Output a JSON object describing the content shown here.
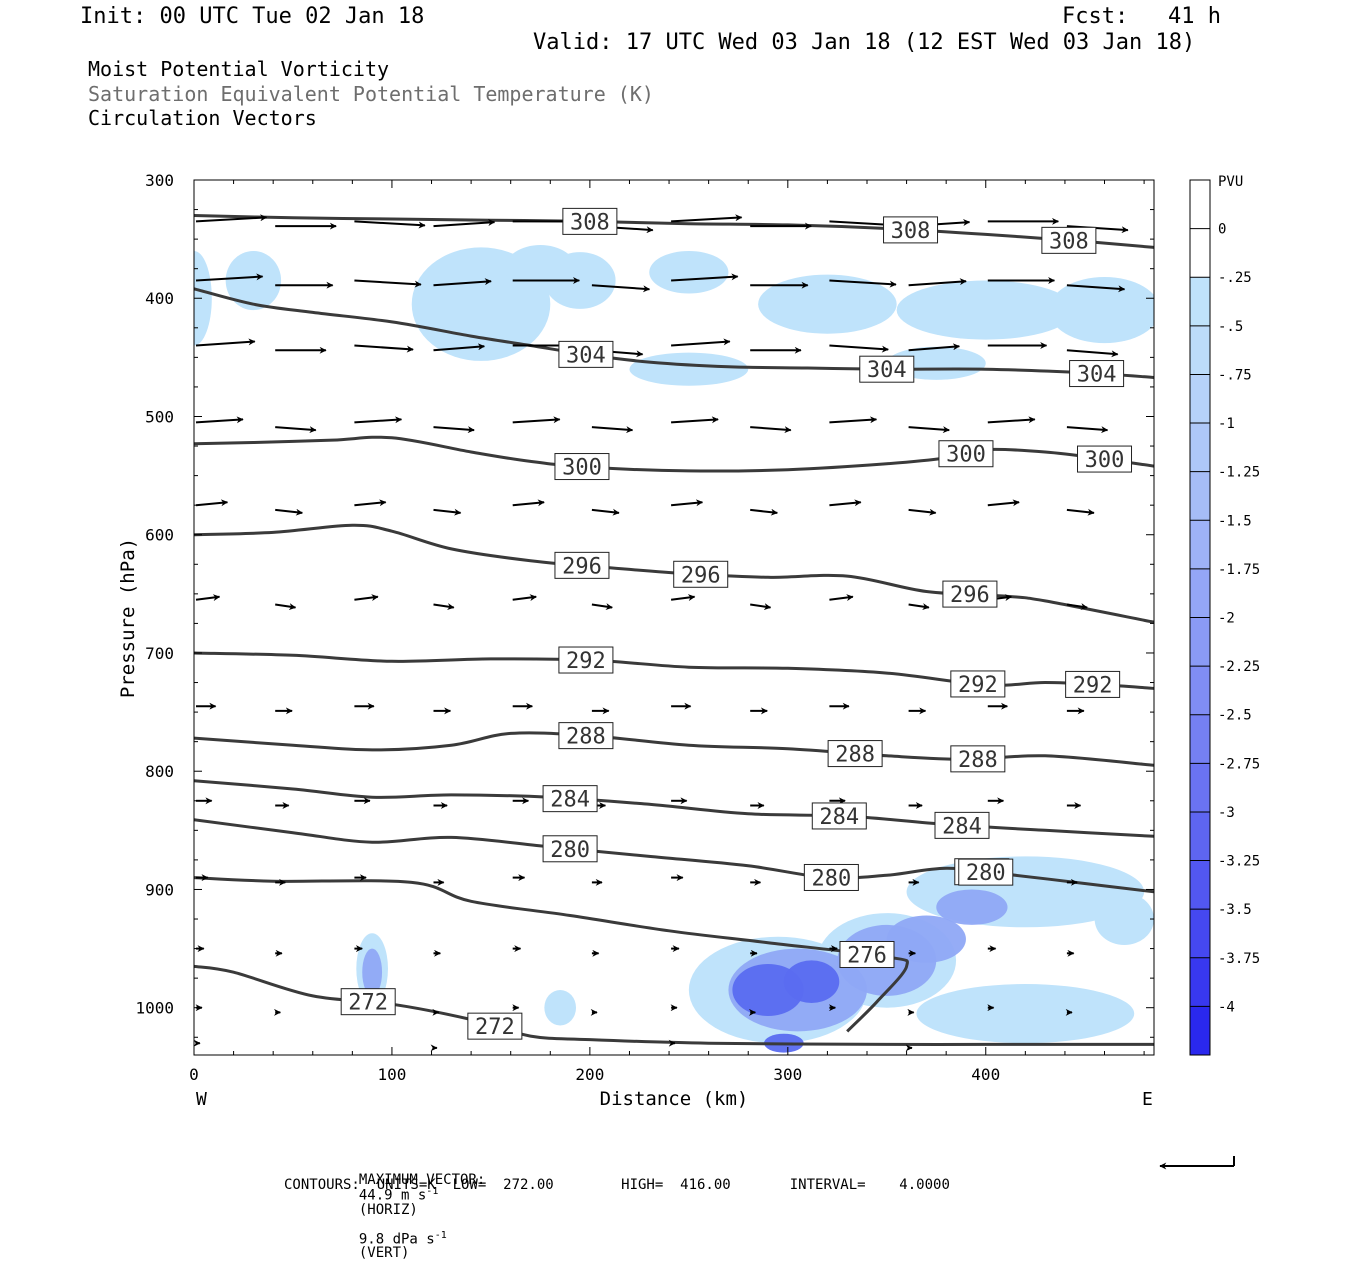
{
  "header": {
    "init": "Init: 00 UTC Tue 02 Jan 18",
    "fcst": "Fcst:   41 h",
    "valid": "Valid: 17 UTC Wed 03 Jan 18 (12 EST Wed 03 Jan 18)"
  },
  "titles": {
    "line1": "Moist Potential Vorticity",
    "line2": "Saturation Equivalent Potential Temperature (K)",
    "line3": "Circulation Vectors"
  },
  "footer": {
    "max_vector_label": "MAXIMUM VECTOR:",
    "horiz": "44.9 m s",
    "horiz_unit": "(HORIZ)",
    "vert": "9.8 dPa s",
    "vert_unit": "(VERT)",
    "exp": "-1",
    "contours": "CONTOURS:  UNITS=K  LOW=  272.00        HIGH=  416.00       INTERVAL=    4.0000"
  },
  "colors": {
    "contour": "#3a3a3a",
    "arrow": "#000000",
    "pv_light": "#bfe3fb",
    "pv_mid": "#8fa8f5",
    "pv_dark": "#5a6cf0"
  },
  "chart_data": {
    "type": "cross-section",
    "xlabel": "Distance (km)",
    "ylabel": "Pressure (hPa)",
    "xlim": [
      0,
      485
    ],
    "ylim": [
      1040,
      300
    ],
    "x_ticks": [
      0,
      100,
      200,
      300,
      400
    ],
    "y_ticks": [
      300,
      400,
      500,
      600,
      700,
      800,
      900,
      1000
    ],
    "x_end_labels": [
      "W",
      "E"
    ],
    "colorbar": {
      "title": "PVU",
      "labels": [
        "0",
        "-.25",
        "-.5",
        "-.75",
        "-1",
        "-1.25",
        "-1.5",
        "-1.75",
        "-2",
        "-2.25",
        "-2.5",
        "-2.75",
        "-3",
        "-3.25",
        "-3.5",
        "-3.75",
        "-4"
      ],
      "colors": [
        "#ffffff",
        "#ffffff",
        "#bfe3fb",
        "#bcdcfa",
        "#b6d2f9",
        "#aec8f8",
        "#a6bdf7",
        "#9eb2f7",
        "#94a6f6",
        "#8a9af5",
        "#808df4",
        "#7580f3",
        "#6a73f2",
        "#5e65f1",
        "#5257f1",
        "#4548f0",
        "#3838ef",
        "#2a28ee"
      ]
    },
    "theta_contours": [
      {
        "value": 308,
        "labels": [
          "308",
          "308",
          "308"
        ],
        "points": [
          [
            0,
            330
          ],
          [
            50,
            332
          ],
          [
            100,
            333
          ],
          [
            150,
            334
          ],
          [
            200,
            335
          ],
          [
            250,
            337
          ],
          [
            300,
            338
          ],
          [
            350,
            341
          ],
          [
            400,
            346
          ],
          [
            450,
            352
          ],
          [
            485,
            357
          ]
        ]
      },
      {
        "value": 304,
        "labels": [
          "304",
          "304",
          "304"
        ],
        "points": [
          [
            0,
            392
          ],
          [
            30,
            405
          ],
          [
            60,
            412
          ],
          [
            100,
            420
          ],
          [
            140,
            432
          ],
          [
            170,
            440
          ],
          [
            200,
            448
          ],
          [
            230,
            454
          ],
          [
            270,
            458
          ],
          [
            310,
            459
          ],
          [
            350,
            460
          ],
          [
            400,
            460
          ],
          [
            450,
            463
          ],
          [
            485,
            467
          ]
        ]
      },
      {
        "value": 300,
        "labels": [
          "300",
          "300",
          "300"
        ],
        "points": [
          [
            0,
            523
          ],
          [
            30,
            522
          ],
          [
            70,
            520
          ],
          [
            100,
            518
          ],
          [
            140,
            530
          ],
          [
            170,
            538
          ],
          [
            200,
            543
          ],
          [
            250,
            546
          ],
          [
            300,
            545
          ],
          [
            350,
            540
          ],
          [
            380,
            535
          ],
          [
            400,
            528
          ],
          [
            430,
            530
          ],
          [
            460,
            536
          ],
          [
            485,
            542
          ]
        ]
      },
      {
        "value": 296,
        "labels": [
          "296",
          "296",
          "296"
        ],
        "points": [
          [
            0,
            600
          ],
          [
            40,
            598
          ],
          [
            80,
            592
          ],
          [
            100,
            597
          ],
          [
            130,
            612
          ],
          [
            170,
            622
          ],
          [
            210,
            628
          ],
          [
            250,
            633
          ],
          [
            290,
            636
          ],
          [
            330,
            635
          ],
          [
            370,
            648
          ],
          [
            410,
            652
          ],
          [
            430,
            656
          ],
          [
            485,
            674
          ]
        ]
      },
      {
        "value": 292,
        "labels": [
          "292",
          "292",
          "292"
        ],
        "points": [
          [
            0,
            700
          ],
          [
            50,
            702
          ],
          [
            100,
            707
          ],
          [
            150,
            705
          ],
          [
            200,
            706
          ],
          [
            250,
            712
          ],
          [
            300,
            713
          ],
          [
            350,
            717
          ],
          [
            400,
            727
          ],
          [
            430,
            725
          ],
          [
            460,
            727
          ],
          [
            485,
            730
          ]
        ]
      },
      {
        "value": 288,
        "labels": [
          "288",
          "288",
          "288"
        ],
        "points": [
          [
            0,
            772
          ],
          [
            50,
            778
          ],
          [
            90,
            782
          ],
          [
            130,
            778
          ],
          [
            160,
            768
          ],
          [
            200,
            770
          ],
          [
            250,
            778
          ],
          [
            300,
            781
          ],
          [
            350,
            787
          ],
          [
            390,
            790
          ],
          [
            430,
            787
          ],
          [
            485,
            795
          ]
        ]
      },
      {
        "value": 284,
        "labels": [
          "284",
          "284",
          "284"
        ],
        "points": [
          [
            0,
            808
          ],
          [
            50,
            815
          ],
          [
            90,
            822
          ],
          [
            130,
            820
          ],
          [
            180,
            822
          ],
          [
            230,
            828
          ],
          [
            280,
            836
          ],
          [
            330,
            838
          ],
          [
            380,
            845
          ],
          [
            430,
            850
          ],
          [
            485,
            855
          ]
        ]
      },
      {
        "value": 280,
        "labels": [
          "280",
          "280",
          "280",
          "280"
        ],
        "points": [
          [
            0,
            841
          ],
          [
            50,
            852
          ],
          [
            90,
            860
          ],
          [
            130,
            856
          ],
          [
            180,
            864
          ],
          [
            230,
            872
          ],
          [
            280,
            880
          ],
          [
            320,
            890
          ],
          [
            350,
            888
          ],
          [
            380,
            882
          ],
          [
            410,
            887
          ],
          [
            450,
            895
          ],
          [
            485,
            902
          ]
        ]
      },
      {
        "value": 276,
        "labels": [
          "276"
        ],
        "points": [
          [
            0,
            890
          ],
          [
            40,
            893
          ],
          [
            110,
            894
          ],
          [
            140,
            910
          ],
          [
            190,
            922
          ],
          [
            240,
            935
          ],
          [
            290,
            945
          ],
          [
            350,
            957
          ],
          [
            360,
            965
          ],
          [
            345,
            995
          ],
          [
            330,
            1020
          ]
        ]
      },
      {
        "value": 272,
        "labels": [
          "272",
          "272"
        ],
        "points": [
          [
            0,
            965
          ],
          [
            20,
            970
          ],
          [
            60,
            990
          ],
          [
            100,
            997
          ],
          [
            140,
            1010
          ],
          [
            170,
            1024
          ],
          [
            200,
            1027
          ],
          [
            260,
            1030
          ],
          [
            350,
            1031
          ],
          [
            400,
            1031
          ],
          [
            485,
            1031
          ]
        ]
      }
    ],
    "max_vector": {
      "horiz_ms": 44.9,
      "vert_dPa_s": 9.8
    }
  }
}
